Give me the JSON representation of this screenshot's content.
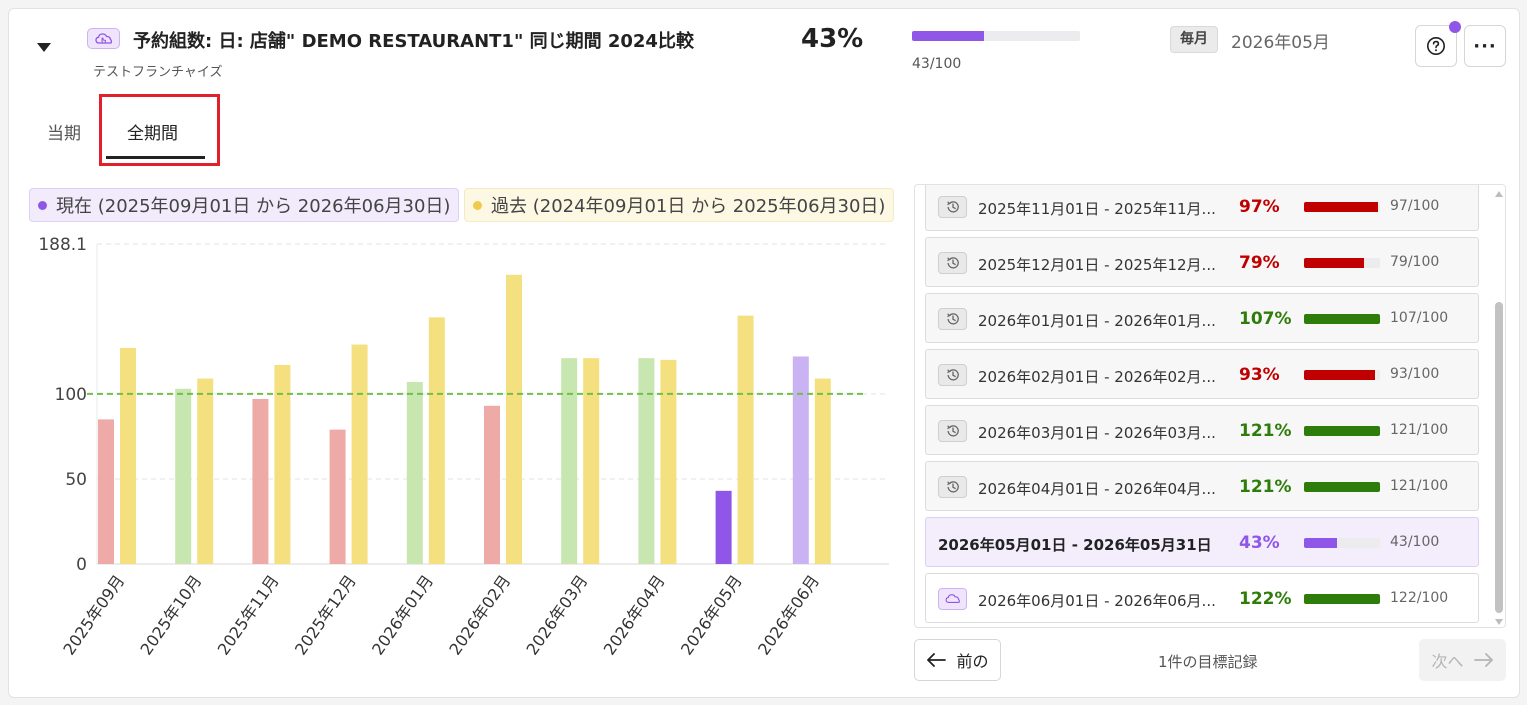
{
  "header": {
    "title": "予約組数: 日: 店舗\" DEMO RESTAURANT1\" 同じ期間 2024比較",
    "subtitle": "テストフランチャイズ",
    "percent": "43%",
    "progress_fraction": 0.43,
    "progress_text": "43/100",
    "frequency_badge": "毎月",
    "period": "2026年05月",
    "icons": {
      "collapse": "caret-down-icon",
      "title": "cloud-hand-icon",
      "help": "question-circle-icon",
      "more": "ellipsis-icon"
    },
    "more_label": "···",
    "accent_color": "#8f56e8"
  },
  "tabs": [
    {
      "label": "当期",
      "selected": false
    },
    {
      "label": "全期間",
      "selected": true
    }
  ],
  "legend": {
    "current": {
      "label": "現在 (2025年09月01日 から 2026年06月30日)",
      "color": "#8f56e8"
    },
    "past": {
      "label": "過去 (2024年09月01日 から 2025年06月30日)",
      "color": "#f2c94c"
    }
  },
  "chart_data": {
    "type": "bar",
    "categories": [
      "2025年09月",
      "2025年10月",
      "2025年11月",
      "2025年12月",
      "2026年01月",
      "2026年02月",
      "2026年03月",
      "2026年04月",
      "2026年05月",
      "2026年06月"
    ],
    "series": [
      {
        "values": [
          85,
          103,
          97,
          79,
          107,
          93,
          121,
          121,
          43,
          122
        ],
        "colors": [
          "#eeaaa6",
          "#c8e6b0",
          "#eeaaa6",
          "#eeaaa6",
          "#c8e6b0",
          "#eeaaa6",
          "#c8e6b0",
          "#c8e6b0",
          "#8f56e8",
          "#c9b3f2"
        ]
      },
      {
        "values": [
          127,
          109,
          117,
          129,
          145,
          170,
          121,
          120,
          146,
          109
        ],
        "color": "#f4e07f"
      }
    ],
    "target": 100,
    "target_color": "#6ec04a",
    "yticks": [
      0,
      50,
      100,
      188.1
    ],
    "ylim": [
      0,
      188.1
    ],
    "grid": true
  },
  "records": [
    {
      "label": "2025年11月01日 - 2025年11月...",
      "percent": "97%",
      "fraction": 0.97,
      "count": "97/100",
      "status": "below",
      "icon": "history-icon"
    },
    {
      "label": "2025年12月01日 - 2025年12月...",
      "percent": "79%",
      "fraction": 0.79,
      "count": "79/100",
      "status": "below",
      "icon": "history-icon"
    },
    {
      "label": "2026年01月01日 - 2026年01月...",
      "percent": "107%",
      "fraction": 1.0,
      "count": "107/100",
      "status": "above",
      "icon": "history-icon"
    },
    {
      "label": "2026年02月01日 - 2026年02月...",
      "percent": "93%",
      "fraction": 0.93,
      "count": "93/100",
      "status": "below",
      "icon": "history-icon"
    },
    {
      "label": "2026年03月01日 - 2026年03月...",
      "percent": "121%",
      "fraction": 1.0,
      "count": "121/100",
      "status": "above",
      "icon": "history-icon"
    },
    {
      "label": "2026年04月01日 - 2026年04月...",
      "percent": "121%",
      "fraction": 1.0,
      "count": "121/100",
      "status": "above",
      "icon": "history-icon"
    },
    {
      "label": "2026年05月01日 - 2026年05月31日",
      "percent": "43%",
      "fraction": 0.43,
      "count": "43/100",
      "status": "current",
      "icon": ""
    },
    {
      "label": "2026年06月01日 - 2026年06月...",
      "percent": "122%",
      "fraction": 1.0,
      "count": "122/100",
      "status": "above",
      "icon": "cloud-hand-icon"
    }
  ],
  "status_colors": {
    "below": "#c00000",
    "above": "#2e7d0a",
    "current": "#8f56e8"
  },
  "pagination": {
    "prev_label": "前の",
    "next_label": "次へ",
    "record_count": "1件の目標記録",
    "prev_icon": "arrow-left-icon",
    "next_icon": "arrow-right-icon"
  }
}
